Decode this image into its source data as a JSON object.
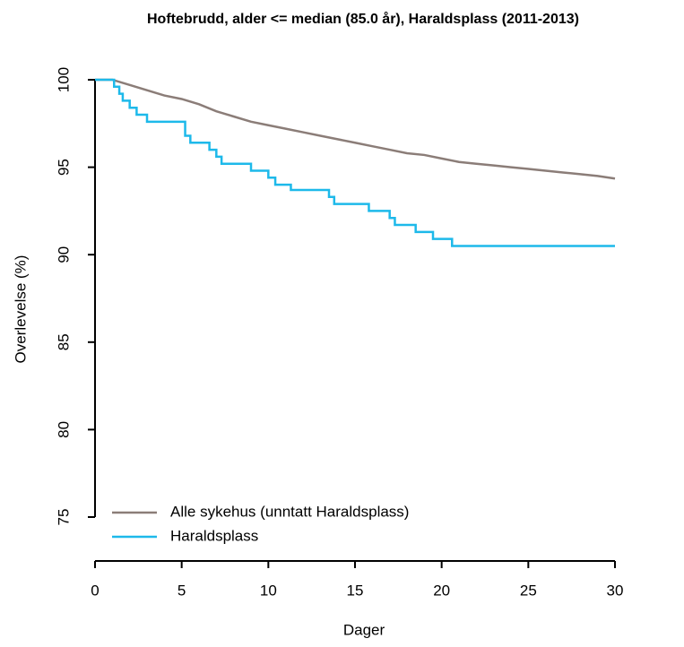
{
  "chart_data": {
    "type": "line",
    "title": "Hoftebrudd, alder <= median (85.0 år), Haraldsplass (2011-2013)",
    "x_label": "Dager",
    "y_label": "Overlevelse (%)",
    "xlim": [
      0,
      30
    ],
    "xticks": [
      0,
      5,
      10,
      15,
      20,
      25,
      30
    ],
    "ylim": [
      75,
      100
    ],
    "yticks": [
      75,
      80,
      85,
      90,
      95,
      100
    ],
    "legend": "bottom-left",
    "series": [
      {
        "name": "Alle sykehus (unntatt Haraldsplass)",
        "color": "#8b7d78",
        "x": [
          0,
          1,
          2,
          3,
          4,
          5,
          6,
          7,
          8,
          9,
          10,
          11,
          12,
          13,
          14,
          15,
          16,
          17,
          18,
          19,
          20,
          21,
          22,
          23,
          24,
          25,
          26,
          27,
          28,
          29,
          30
        ],
        "values": [
          100,
          100,
          99.7,
          99.4,
          99.1,
          98.9,
          98.6,
          98.2,
          97.9,
          97.6,
          97.4,
          97.2,
          97.0,
          96.8,
          96.6,
          96.4,
          96.2,
          96.0,
          95.8,
          95.7,
          95.5,
          95.3,
          95.2,
          95.1,
          95.0,
          94.9,
          94.8,
          94.7,
          94.6,
          94.5,
          94.35
        ]
      },
      {
        "name": "Haraldsplass",
        "color": "#1db9ea",
        "x": [
          0,
          1.1,
          1.1,
          1.4,
          1.4,
          1.6,
          1.6,
          2.0,
          2.0,
          2.4,
          2.4,
          3.0,
          3.0,
          5.2,
          5.2,
          5.5,
          5.5,
          6.6,
          6.6,
          7.0,
          7.0,
          7.3,
          7.3,
          9.0,
          9.0,
          10.0,
          10.0,
          10.4,
          10.4,
          11.3,
          11.3,
          13.5,
          13.5,
          13.8,
          13.8,
          15.8,
          15.8,
          17.0,
          17.0,
          17.3,
          17.3,
          18.5,
          18.5,
          19.5,
          19.5,
          20.6,
          20.6,
          30
        ],
        "values": [
          100,
          100,
          99.6,
          99.6,
          99.2,
          99.2,
          98.8,
          98.8,
          98.4,
          98.4,
          98.0,
          98.0,
          97.6,
          97.6,
          96.8,
          96.8,
          96.4,
          96.4,
          96.0,
          96.0,
          95.6,
          95.6,
          95.2,
          95.2,
          94.8,
          94.8,
          94.4,
          94.4,
          94.0,
          94.0,
          93.7,
          93.7,
          93.3,
          93.3,
          92.9,
          92.9,
          92.5,
          92.5,
          92.1,
          92.1,
          91.7,
          91.7,
          91.3,
          91.3,
          90.9,
          90.9,
          90.5,
          90.5
        ]
      }
    ]
  }
}
